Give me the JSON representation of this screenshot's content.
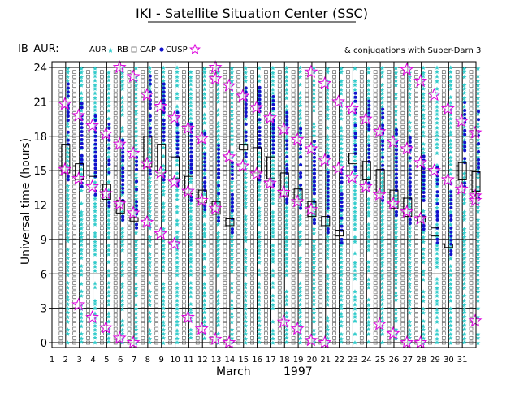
{
  "chart_data": {
    "type": "scatter",
    "title": "IKI - Satellite Situation Center (SSC)",
    "subtitle": "IB_AUR:",
    "note": "& conjugations with Super-Darn 3",
    "ylabel": "Universal time (hours)",
    "xlabel_month": "March",
    "xlabel_year": "1997",
    "ylim": [
      0,
      24
    ],
    "xlim": [
      1,
      32
    ],
    "yticks": [
      0,
      3,
      6,
      9,
      12,
      15,
      18,
      21,
      24
    ],
    "xticks": [
      1,
      2,
      3,
      4,
      5,
      6,
      7,
      8,
      9,
      10,
      11,
      12,
      13,
      14,
      15,
      16,
      17,
      18,
      19,
      20,
      21,
      22,
      23,
      24,
      25,
      26,
      27,
      28,
      29,
      30,
      31
    ],
    "legend": [
      {
        "label": "AUR",
        "marker": "cyan-star",
        "color": "#33cccc"
      },
      {
        "label": "RB",
        "marker": "open-square",
        "color": "#666666"
      },
      {
        "label": "CAP",
        "marker": "blue-dot",
        "color": "#1111cc"
      },
      {
        "label": "CUSP",
        "marker": "magenta-star",
        "color": "#dd00dd"
      }
    ],
    "series": [
      {
        "name": "CAP-region boxes (day, start hour, end hour)",
        "values": [
          [
            2,
            14.8,
            17.3
          ],
          [
            3,
            14.2,
            15.6
          ],
          [
            4,
            13.5,
            14.5
          ],
          [
            5,
            12.5,
            13.8
          ],
          [
            6,
            11.3,
            12.4
          ],
          [
            7,
            10.6,
            10.9
          ],
          [
            8,
            15.3,
            18.0
          ],
          [
            9,
            14.8,
            17.3
          ],
          [
            10,
            14.3,
            16.2
          ],
          [
            11,
            13.0,
            14.5
          ],
          [
            12,
            12.2,
            13.3
          ],
          [
            13,
            11.2,
            12.3
          ],
          [
            14,
            10.2,
            10.8
          ],
          [
            15,
            16.8,
            17.3
          ],
          [
            16,
            14.8,
            17.0
          ],
          [
            17,
            14.3,
            16.2
          ],
          [
            18,
            12.8,
            14.8
          ],
          [
            19,
            12.3,
            13.4
          ],
          [
            20,
            11.0,
            12.3
          ],
          [
            21,
            10.2,
            11.0
          ],
          [
            22,
            9.3,
            9.8
          ],
          [
            23,
            15.6,
            16.5
          ],
          [
            24,
            14.2,
            15.8
          ],
          [
            25,
            13.0,
            15.1
          ],
          [
            26,
            11.7,
            13.3
          ],
          [
            27,
            11.0,
            12.6
          ],
          [
            28,
            10.5,
            11.0
          ],
          [
            29,
            9.3,
            10.0
          ],
          [
            30,
            8.3,
            8.6
          ],
          [
            31,
            14.2,
            15.7
          ],
          [
            32,
            13.2,
            14.9
          ]
        ]
      },
      {
        "name": "CUSP crossings (day, hour)",
        "values": [
          [
            2,
            20.8
          ],
          [
            2,
            15.1
          ],
          [
            3,
            19.8
          ],
          [
            3,
            14.3
          ],
          [
            3,
            3.3
          ],
          [
            4,
            18.9
          ],
          [
            4,
            13.6
          ],
          [
            4,
            2.2
          ],
          [
            5,
            18.2
          ],
          [
            5,
            13.0
          ],
          [
            5,
            1.3
          ],
          [
            6,
            24.0
          ],
          [
            6,
            17.3
          ],
          [
            6,
            12.1
          ],
          [
            6,
            0.4
          ],
          [
            7,
            23.2
          ],
          [
            7,
            16.5
          ],
          [
            7,
            11.3
          ],
          [
            7,
            0.0
          ],
          [
            8,
            21.6
          ],
          [
            8,
            15.6
          ],
          [
            8,
            10.5
          ],
          [
            9,
            20.6
          ],
          [
            9,
            14.8
          ],
          [
            9,
            9.5
          ],
          [
            10,
            19.6
          ],
          [
            10,
            14.0
          ],
          [
            10,
            8.6
          ],
          [
            11,
            18.7
          ],
          [
            11,
            13.2
          ],
          [
            11,
            2.2
          ],
          [
            12,
            17.8
          ],
          [
            12,
            12.4
          ],
          [
            12,
            1.2
          ],
          [
            13,
            24.0
          ],
          [
            13,
            23.0
          ],
          [
            13,
            11.7
          ],
          [
            13,
            0.3
          ],
          [
            14,
            22.4
          ],
          [
            14,
            16.2
          ],
          [
            14,
            0.0
          ],
          [
            15,
            21.5
          ],
          [
            15,
            15.4
          ],
          [
            16,
            20.5
          ],
          [
            16,
            14.7
          ],
          [
            17,
            19.6
          ],
          [
            17,
            13.9
          ],
          [
            18,
            18.6
          ],
          [
            18,
            13.1
          ],
          [
            18,
            1.8
          ],
          [
            19,
            17.7
          ],
          [
            19,
            12.3
          ],
          [
            19,
            1.2
          ],
          [
            20,
            23.6
          ],
          [
            20,
            16.9
          ],
          [
            20,
            11.6
          ],
          [
            20,
            0.2
          ],
          [
            21,
            22.6
          ],
          [
            21,
            15.9
          ],
          [
            21,
            0.0
          ],
          [
            22,
            21.0
          ],
          [
            22,
            15.2
          ],
          [
            23,
            20.4
          ],
          [
            23,
            14.4
          ],
          [
            24,
            19.5
          ],
          [
            24,
            13.6
          ],
          [
            25,
            18.4
          ],
          [
            25,
            12.9
          ],
          [
            25,
            1.6
          ],
          [
            26,
            17.5
          ],
          [
            26,
            12.1
          ],
          [
            26,
            0.8
          ],
          [
            27,
            23.8
          ],
          [
            27,
            16.9
          ],
          [
            27,
            11.4
          ],
          [
            27,
            0.0
          ],
          [
            28,
            22.8
          ],
          [
            28,
            15.7
          ],
          [
            28,
            10.8
          ],
          [
            28,
            0.0
          ],
          [
            29,
            21.6
          ],
          [
            29,
            15.0
          ],
          [
            30,
            20.4
          ],
          [
            30,
            14.2
          ],
          [
            31,
            19.3
          ],
          [
            31,
            13.4
          ],
          [
            32,
            18.3
          ],
          [
            32,
            12.8
          ],
          [
            32,
            12.4
          ],
          [
            32,
            1.9
          ]
        ]
      }
    ]
  }
}
